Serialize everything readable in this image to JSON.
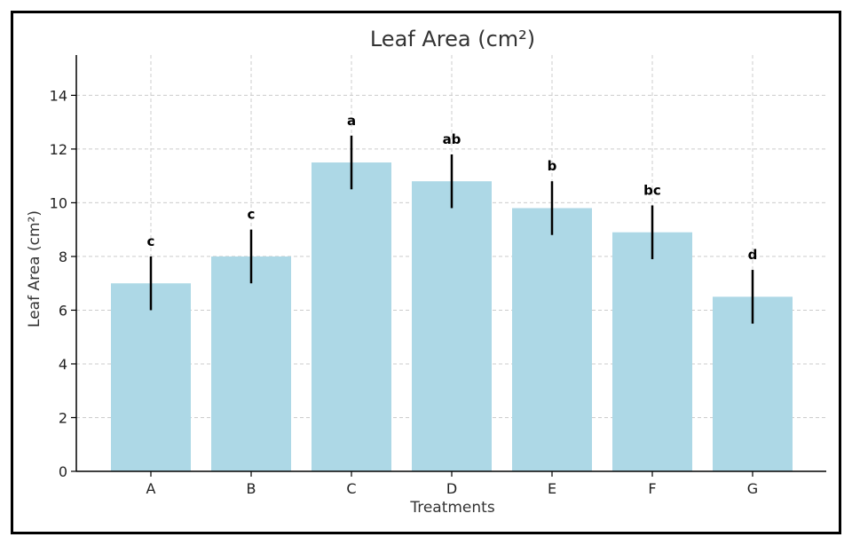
{
  "chart_data": {
    "type": "bar",
    "title": "Leaf Area (cm²)",
    "xlabel": "Treatments",
    "ylabel": "Leaf Area (cm²)",
    "ylim": [
      0,
      15.5
    ],
    "yticks": [
      0,
      2,
      4,
      6,
      8,
      10,
      12,
      14
    ],
    "grid": true,
    "categories": [
      "A",
      "B",
      "C",
      "D",
      "E",
      "F",
      "G"
    ],
    "values": [
      7.0,
      8.0,
      11.5,
      10.8,
      9.8,
      8.9,
      6.5
    ],
    "errors": [
      1.0,
      1.0,
      1.0,
      1.0,
      1.0,
      1.0,
      1.0
    ],
    "significance_letters": [
      "c",
      "c",
      "a",
      "ab",
      "b",
      "bc",
      "d"
    ],
    "colors": {
      "bar": "#add8e6",
      "error_bar": "#000000"
    }
  }
}
